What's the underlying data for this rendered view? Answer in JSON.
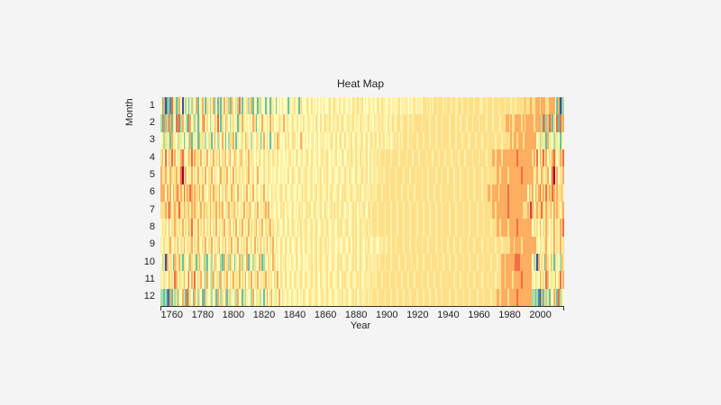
{
  "chart_data": {
    "type": "heatmap",
    "title": "Heat Map",
    "xlabel": "Year",
    "ylabel": "Month",
    "x_range": [
      1753,
      2015
    ],
    "x_ticks": [
      1760,
      1780,
      1800,
      1820,
      1840,
      1860,
      1880,
      1900,
      1920,
      1940,
      1960,
      1980,
      2000
    ],
    "y_ticks": [
      1,
      2,
      3,
      4,
      5,
      6,
      7,
      8,
      9,
      10,
      11,
      12
    ],
    "grid": false,
    "legend": "none",
    "colormap": "Spectral (reversed): low = blue/green, mid = pale yellow, high = orange/red",
    "color_levels": [
      "#3f4fa2",
      "#3a8fb7",
      "#66c2a5",
      "#abdda4",
      "#e6f598",
      "#ffffbf",
      "#fef0a6",
      "#fee08b",
      "#fdae61",
      "#f46d43",
      "#d53e4f",
      "#9e0142"
    ],
    "value_encoding": "Each month row is a string with one character per year from 1753 to 2015; the digit is an index into color_levels (0 = coldest, a/b = hottest).",
    "rows": [
      {
        "month": 1,
        "levels": "52802319742385063526375825685276368252726857328657395265736825627355265276525657555265675627655765756575657556756765765765665766766756567566576576656756656756667565675666577676767767776767767766776777677767776677677767776777677767767777787778778887888778888"
      },
      {
        "month": 2,
        "levels": "39283982759293856298573627589675365869627587536756275845657587256586575867565765857656756756575676575765756766757667567656766756657665675657667576657567657766777677677777677776777677767777677767767776777677767777677767777677788787788887878888878888"
      },
      {
        "month": 3,
        "levels": "56374728465374526538264528476357426853758625377852654758765365775268575265758756575756775658756575675675667565676575675675667567656756756766757667566756767676777676777677767776777677767777677767776777667776777677767777677767777787887888788888888"
      },
      {
        "month": 4,
        "levels": "78595879685768975687968776857685768576857785785687578757685765757657657657657566565675657656756765765675675676565675657656767657657666757667676777677767777677776777677767777677767776777677767777677767777677767777677788788878888888889888888888"
      },
      {
        "month": 5,
        "levels": "86786587678579b78576857685675857685765784768576857675765785675685657657656576565656756765676567656756576757676567656765676576567656766757667667676777677767777677767776777677767777677767776777677767777677767777677767777788788887888888889888888"
      },
      {
        "month": 6,
        "levels": "88858785878978697879868778687657868776857687658775867576857685765768576576675676576567656756767656756756765675676567657676567656767567666767677767777677767776777677767777677767776777677767777677767777677767777677788788887888889888888888"
      },
      {
        "month": 7,
        "levels": "77787a86787797687786878767868776867786878567857786757685778657685767868576576576757656756576756767567656756765675767567656756767576676577677767777677767776777677767777677767776777677767777677767777677767777677767777788788888889888888888"
      },
      {
        "month": 8,
        "levels": "57675857687576857687957685768576857685767856785768576857685767857685767857657656756756765767567656756765675676567657676567656767567666767677767777677767776777677767777677767776777677767777677767777677767777677767777677788788887888889888888888"
      },
      {
        "month": 9,
        "levels": "65766786576857685767857686576857685767857685768576857676856758576857685768576576576576567657657656756756765767567656756765675767567657676567656767667767767777677767776777677767777677767776777677767777677767777677767777677767777788788887888888888"
      },
      {
        "month": 10,
        "levels": "53708576287584276538754278658325736875632857387526587365827537658723657658756575675657657656756576756756765676567657676567656767567656767667676777677767777677767776777677767777677767776777677767777677767777677767777677767788788888899988888888"
      },
      {
        "month": 11,
        "levels": "65765847598574685795869576857385738567385748576857485768576857485767857675768576576576576567657656756765765675676567657676567656767567666767677767777677767776777677767777677767776777677767777677767777677767777677767777677788788887888889888888"
      },
      {
        "month": 12,
        "levels": "33231082737265872937528637529365735628637582736573856273656385747352685785475857657657656756576567656765675676567656767567656767567666767677767777677767776777677767777677767776777677767777677767777677767777677767777677788788887888889888888888"
      }
    ]
  }
}
